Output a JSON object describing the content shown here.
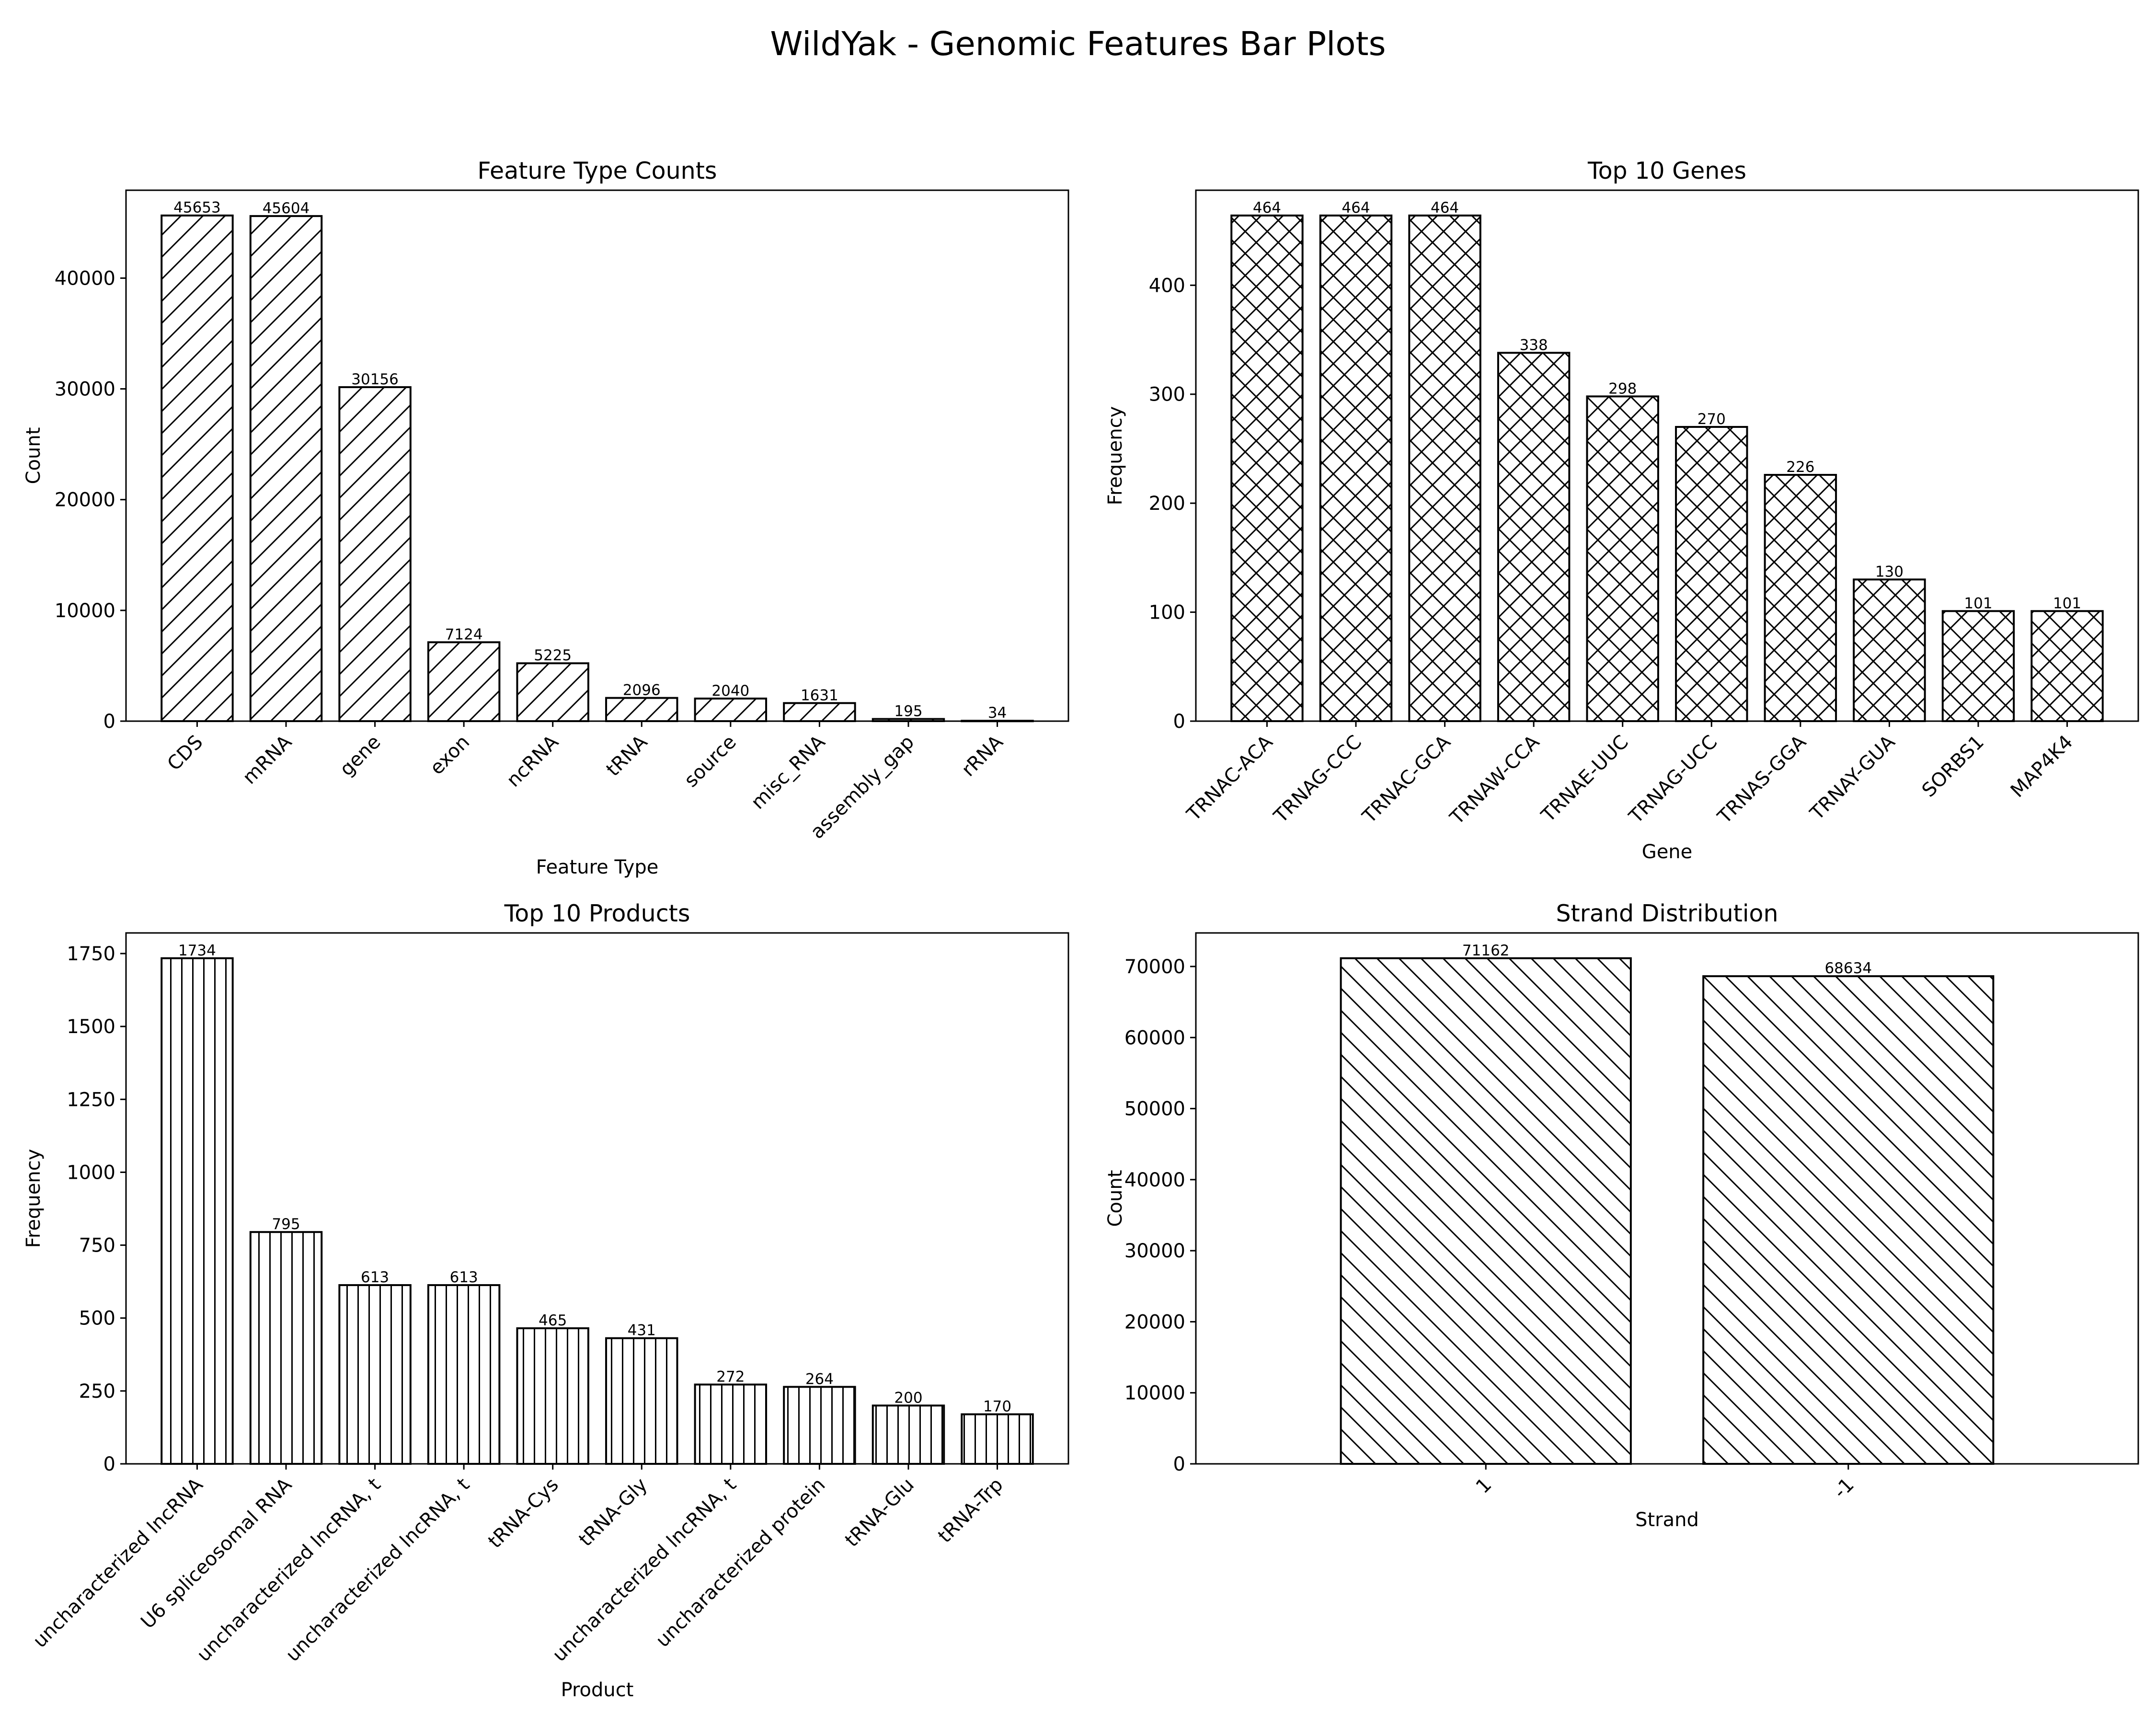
{
  "figure": {
    "title": "WildYak - Genomic Features Bar Plots"
  },
  "chart_data": [
    {
      "type": "bar",
      "title": "Feature Type Counts",
      "xlabel": "Feature Type",
      "ylabel": "Count",
      "categories": [
        "CDS",
        "mRNA",
        "gene",
        "exon",
        "ncRNA",
        "tRNA",
        "source",
        "misc_RNA",
        "assembly_gap",
        "rRNA"
      ],
      "values": [
        45653,
        45604,
        30156,
        7124,
        5225,
        2096,
        2040,
        1631,
        195,
        34
      ],
      "ylim": [
        0,
        47935
      ],
      "yticks": [
        0,
        10000,
        20000,
        30000,
        40000
      ],
      "hatch": "forward-diagonal",
      "grid": false
    },
    {
      "type": "bar",
      "title": "Top 10 Genes",
      "xlabel": "Gene",
      "ylabel": "Frequency",
      "categories": [
        "TRNAC-ACA",
        "TRNAG-CCC",
        "TRNAC-GCA",
        "TRNAW-CCA",
        "TRNAE-UUC",
        "TRNAG-UCC",
        "TRNAS-GGA",
        "TRNAY-GUA",
        "SORBS1",
        "MAP4K4"
      ],
      "values": [
        464,
        464,
        464,
        338,
        298,
        270,
        226,
        130,
        101,
        101
      ],
      "ylim": [
        0,
        487.2
      ],
      "yticks": [
        0,
        100,
        200,
        300,
        400
      ],
      "hatch": "crosshatch",
      "grid": false
    },
    {
      "type": "bar",
      "title": "Top 10 Products",
      "xlabel": "Product",
      "ylabel": "Frequency",
      "categories": [
        "uncharacterized lncRNA",
        "U6 spliceosomal RNA",
        "uncharacterized lncRNA, t",
        "uncharacterized lncRNA, t",
        "tRNA-Cys",
        "tRNA-Gly",
        "uncharacterized lncRNA, t",
        "uncharacterized protein",
        "tRNA-Glu",
        "tRNA-Trp"
      ],
      "values": [
        1734,
        795,
        613,
        613,
        465,
        431,
        272,
        264,
        200,
        170
      ],
      "ylim": [
        0,
        1820.7
      ],
      "yticks": [
        0,
        250,
        500,
        750,
        1000,
        1250,
        1500,
        1750
      ],
      "hatch": "vertical",
      "grid": false
    },
    {
      "type": "bar",
      "title": "Strand Distribution",
      "xlabel": "Strand",
      "ylabel": "Count",
      "categories": [
        "1",
        "-1"
      ],
      "values": [
        71162,
        68634
      ],
      "ylim": [
        0,
        74720
      ],
      "yticks": [
        0,
        10000,
        20000,
        30000,
        40000,
        50000,
        60000,
        70000
      ],
      "hatch": "back-diagonal",
      "grid": false
    }
  ]
}
